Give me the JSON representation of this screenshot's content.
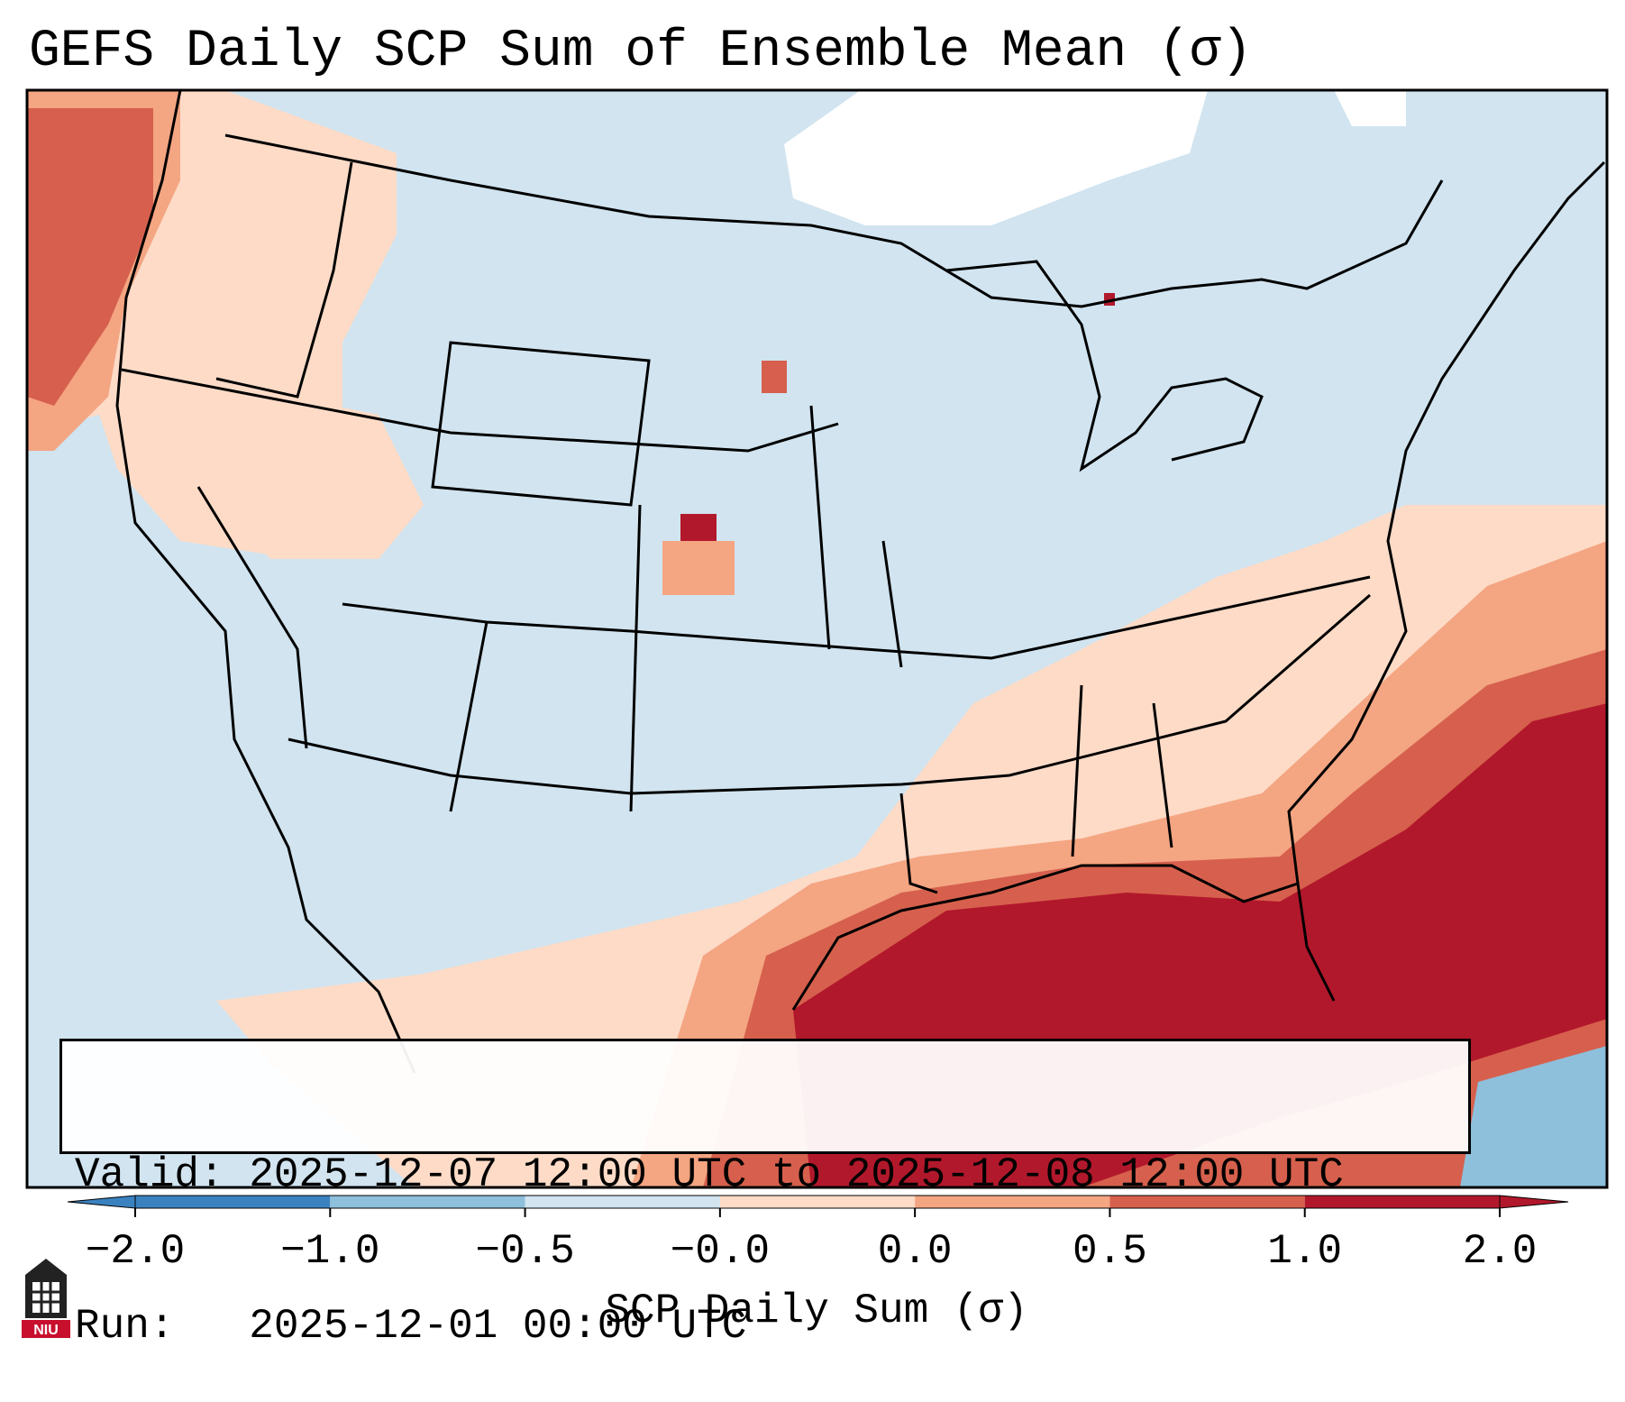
{
  "title": "GEFS Daily SCP Sum of Ensemble Mean (σ)",
  "info": {
    "valid_line": "Valid: 2025-12-07 12:00 UTC to 2025-12-08 12:00 UTC",
    "run_line": "Run:   2025-12-01 00:00 UTC"
  },
  "colorbar": {
    "label": "SCP Daily Sum (σ)",
    "ticks": [
      "−2.0",
      "−1.0",
      "−0.5",
      "−0.0",
      "0.0",
      "0.5",
      "1.0",
      "2.0"
    ],
    "colors": [
      "#3a82bf",
      "#8ebfdb",
      "#d1e4f0",
      "#f7f7f7",
      "#fddbc7",
      "#f4a582",
      "#d6604d",
      "#b2182b"
    ]
  },
  "logo": {
    "text": "NIU",
    "icon": "university-tower-logo"
  }
}
